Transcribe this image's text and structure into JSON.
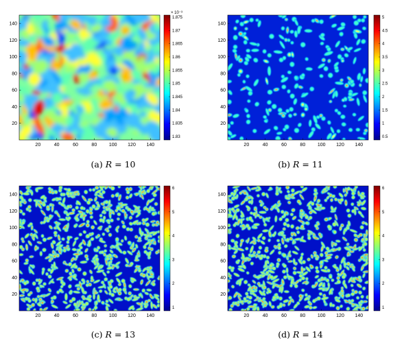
{
  "colormap": [
    "#00008f",
    "#0000ff",
    "#0080ff",
    "#00ffff",
    "#80ff80",
    "#ffff00",
    "#ff8000",
    "#ff0000",
    "#800000"
  ],
  "figures": [
    {
      "id": "a",
      "caption_label": "(a)",
      "caption_var": "R",
      "caption_eq": "= 10",
      "pattern": "noise",
      "x_ticks": [
        "20",
        "40",
        "60",
        "80",
        "100",
        "120",
        "140"
      ],
      "y_ticks": [
        "140",
        "120",
        "100",
        "80",
        "60",
        "40",
        "20"
      ],
      "colorbar_exponent": "× 10⁻³",
      "colorbar_ticks": [
        "1.875",
        "1.87",
        "1.865",
        "1.86",
        "1.855",
        "1.85",
        "1.845",
        "1.84",
        "1.835",
        "1.83"
      ]
    },
    {
      "id": "b",
      "caption_label": "(b)",
      "caption_var": "R",
      "caption_eq": "= 11",
      "pattern": "sparse",
      "x_ticks": [
        "20",
        "40",
        "60",
        "80",
        "100",
        "120",
        "140"
      ],
      "y_ticks": [
        "140",
        "120",
        "100",
        "80",
        "60",
        "40",
        "20"
      ],
      "colorbar_exponent": "",
      "colorbar_ticks": [
        "5",
        "4.5",
        "4",
        "3.5",
        "3",
        "2.5",
        "2",
        "1.5",
        "1",
        "0.5"
      ]
    },
    {
      "id": "c",
      "caption_label": "(c)",
      "caption_var": "R",
      "caption_eq": "= 13",
      "pattern": "dense",
      "x_ticks": [
        "20",
        "40",
        "60",
        "80",
        "100",
        "120",
        "140"
      ],
      "y_ticks": [
        "140",
        "120",
        "100",
        "80",
        "60",
        "40",
        "20"
      ],
      "colorbar_exponent": "",
      "colorbar_ticks": [
        "6",
        "5",
        "4",
        "3",
        "2",
        "1"
      ]
    },
    {
      "id": "d",
      "caption_label": "(d)",
      "caption_var": "R",
      "caption_eq": "= 14",
      "pattern": "dense",
      "x_ticks": [
        "20",
        "40",
        "60",
        "80",
        "100",
        "120",
        "140"
      ],
      "y_ticks": [
        "140",
        "120",
        "100",
        "80",
        "60",
        "40",
        "20"
      ],
      "colorbar_exponent": "",
      "colorbar_ticks": [
        "6",
        "5",
        "4",
        "3",
        "2",
        "1"
      ]
    }
  ]
}
